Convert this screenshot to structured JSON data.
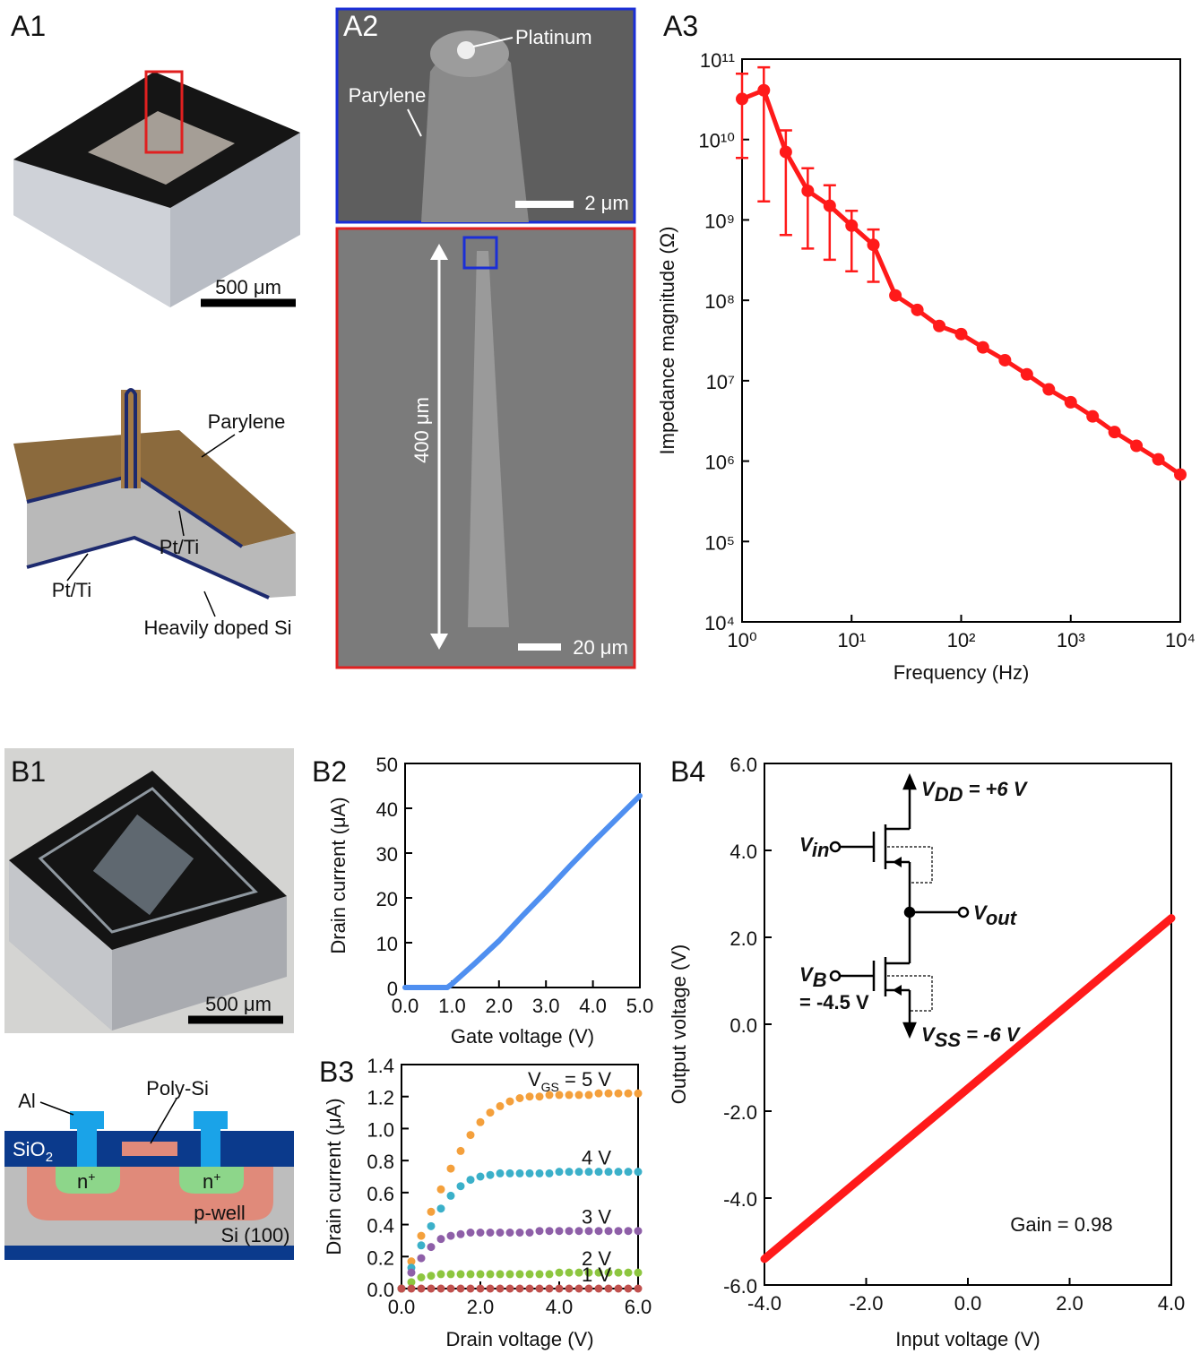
{
  "panels": {
    "a1": "A1",
    "a2": "A2",
    "a3": "A3",
    "b1": "B1",
    "b2": "B2",
    "b3": "B3",
    "b4": "B4"
  },
  "a1": {
    "scale_bar": "500 μm",
    "parylene": "Parylene",
    "pt_ti_1": "Pt/Ti",
    "pt_ti_2": "Pt/Ti",
    "si": "Heavily doped Si"
  },
  "a2": {
    "platinum": "Platinum",
    "parylene": "Parylene",
    "scale_top": "2 μm",
    "length": "400 μm",
    "scale_bottom": "20 μm"
  },
  "b1": {
    "scale_bar": "500 μm",
    "al": "Al",
    "poly": "Poly-Si",
    "sio2": {
      "main": "SiO",
      "sub": "2"
    },
    "n1": {
      "main": "n",
      "sup": "+"
    },
    "n2": {
      "main": "n",
      "sup": "+"
    },
    "pwell": "p-well",
    "si": "Si (100)"
  },
  "b4_circuit": {
    "vdd": {
      "main": "V",
      "sub": "DD",
      "rest": " = +6 V"
    },
    "vin": {
      "main": "V",
      "sub": "in"
    },
    "vout": {
      "main": "V",
      "sub": "out"
    },
    "vb": {
      "main": "V",
      "sub": "B"
    },
    "vb_value": "= -4.5 V",
    "vss": {
      "main": "V",
      "sub": "SS",
      "rest": " = -6 V"
    }
  },
  "chart_data": [
    {
      "type": "line",
      "markers": true,
      "log_x": true,
      "log_y": true,
      "x_label": "Frequency (Hz)",
      "y_label": "Impedance magnitude (Ω)",
      "x": [
        1,
        1.58,
        2.51,
        3.98,
        6.31,
        10,
        15.8,
        25.1,
        39.8,
        63.1,
        100,
        158,
        251,
        398,
        631,
        1000,
        1585,
        2512,
        3981,
        6310,
        10000
      ],
      "series": [
        {
          "color": "#ff1a1a",
          "values": [
            32000000000.0,
            41000000000.0,
            7000000000.0,
            2300000000.0,
            1500000000.0,
            850000000.0,
            490000000.0,
            115000000.0,
            76000000.0,
            48000000.0,
            38000000.0,
            26000000.0,
            18000000.0,
            12000000.0,
            7800000.0,
            5400000.0,
            3600000.0,
            2300000.0,
            1550000.0,
            1050000.0,
            680000.0
          ],
          "upper": [
            66000000000.0,
            79000000000.0,
            13000000000.0,
            4400000000.0,
            2700000000.0,
            1300000000.0,
            760000000.0,
            null,
            null,
            null,
            null,
            null,
            null,
            null,
            null,
            null,
            null,
            null,
            null,
            null,
            null
          ],
          "lower": [
            5900000000.0,
            1700000000.0,
            650000000.0,
            440000000.0,
            320000000.0,
            230000000.0,
            170000000.0,
            null,
            null,
            null,
            null,
            null,
            null,
            null,
            null,
            null,
            null,
            null,
            null,
            null,
            null
          ]
        }
      ],
      "xlim": [
        1,
        10000
      ],
      "ylim": [
        10000,
        100000000000.0
      ],
      "xticks": [
        {
          "value": 1,
          "label": "10⁰"
        },
        {
          "value": 10,
          "label": "10¹"
        },
        {
          "value": 100,
          "label": "10²"
        },
        {
          "value": 1000,
          "label": "10³"
        },
        {
          "value": 10000,
          "label": "10⁴"
        }
      ],
      "yticks": [
        {
          "value": 10000,
          "label": "10⁴"
        },
        {
          "value": 100000,
          "label": "10⁵"
        },
        {
          "value": 1000000,
          "label": "10⁶"
        },
        {
          "value": 10000000,
          "label": "10⁷"
        },
        {
          "value": 100000000,
          "label": "10⁸"
        },
        {
          "value": 1000000000,
          "label": "10⁹"
        },
        {
          "value": 10000000000,
          "label": "10¹⁰"
        },
        {
          "value": 100000000000,
          "label": "10¹¹"
        }
      ]
    },
    {
      "type": "line",
      "markers": false,
      "x_label": "Gate voltage (V)",
      "y_label": "Drain current (μA)",
      "x": [
        0,
        0.5,
        0.9,
        1.0,
        1.5,
        2.0,
        2.5,
        3.0,
        3.5,
        4.0,
        4.5,
        5.0
      ],
      "series": [
        {
          "color": "#4f8ff0",
          "values": [
            0,
            0,
            0,
            0.8,
            5.5,
            10.4,
            16,
            21.4,
            27,
            32.4,
            37.6,
            42.8
          ]
        }
      ],
      "xlim": [
        0,
        5
      ],
      "ylim": [
        0,
        50
      ],
      "xticks": [
        {
          "value": 0,
          "label": "0.0"
        },
        {
          "value": 1,
          "label": "1.0"
        },
        {
          "value": 2,
          "label": "2.0"
        },
        {
          "value": 3,
          "label": "3.0"
        },
        {
          "value": 4,
          "label": "4.0"
        },
        {
          "value": 5,
          "label": "5.0"
        }
      ],
      "yticks": [
        0,
        10,
        20,
        30,
        40,
        50
      ]
    },
    {
      "type": "scatter",
      "x_label": "Drain voltage (V)",
      "y_label": "Drain current (μA)",
      "label_prefix": {
        "main": "V",
        "sub": "GS",
        "rest": " = "
      },
      "x": [
        0,
        0.25,
        0.5,
        0.75,
        1,
        1.25,
        1.5,
        1.75,
        2,
        2.25,
        2.5,
        2.75,
        3,
        3.25,
        3.5,
        3.75,
        4,
        4.25,
        4.5,
        4.75,
        5,
        5.25,
        5.5,
        5.75,
        6
      ],
      "series": [
        {
          "name": "5 V",
          "color": "#f4a03c",
          "values": [
            0,
            0.17,
            0.33,
            0.48,
            0.62,
            0.75,
            0.86,
            0.96,
            1.04,
            1.1,
            1.14,
            1.17,
            1.19,
            1.2,
            1.2,
            1.21,
            1.21,
            1.21,
            1.21,
            1.21,
            1.22,
            1.22,
            1.22,
            1.22,
            1.22
          ]
        },
        {
          "name": "4 V",
          "color": "#3bb0c9",
          "values": [
            0,
            0.13,
            0.27,
            0.39,
            0.5,
            0.58,
            0.64,
            0.68,
            0.7,
            0.71,
            0.72,
            0.72,
            0.72,
            0.72,
            0.72,
            0.72,
            0.73,
            0.73,
            0.73,
            0.73,
            0.73,
            0.73,
            0.73,
            0.73,
            0.73
          ]
        },
        {
          "name": "3 V",
          "color": "#8e5fa8",
          "values": [
            0,
            0.1,
            0.19,
            0.26,
            0.31,
            0.33,
            0.34,
            0.35,
            0.35,
            0.35,
            0.35,
            0.35,
            0.35,
            0.35,
            0.36,
            0.36,
            0.36,
            0.36,
            0.36,
            0.36,
            0.36,
            0.36,
            0.36,
            0.36,
            0.36
          ]
        },
        {
          "name": "2 V",
          "color": "#8dc63f",
          "values": [
            0,
            0.04,
            0.07,
            0.08,
            0.09,
            0.09,
            0.09,
            0.09,
            0.09,
            0.09,
            0.09,
            0.09,
            0.09,
            0.09,
            0.09,
            0.09,
            0.1,
            0.1,
            0.1,
            0.1,
            0.1,
            0.1,
            0.1,
            0.1,
            0.1
          ]
        },
        {
          "name": "1 V",
          "color": "#c0504d",
          "values": [
            0,
            0,
            0,
            0,
            0,
            0,
            0,
            0,
            0,
            0,
            0,
            0,
            0,
            0,
            0,
            0,
            0,
            0,
            0,
            0,
            0,
            0,
            0,
            0,
            0
          ]
        }
      ],
      "xlim": [
        0,
        6
      ],
      "ylim": [
        0,
        1.4
      ],
      "xticks": [
        {
          "value": 0,
          "label": "0.0"
        },
        {
          "value": 2,
          "label": "2.0"
        },
        {
          "value": 4,
          "label": "4.0"
        },
        {
          "value": 6,
          "label": "6.0"
        }
      ],
      "yticks": [
        {
          "value": 0,
          "label": "0.0"
        },
        {
          "value": 0.2,
          "label": "0.2"
        },
        {
          "value": 0.4,
          "label": "0.4"
        },
        {
          "value": 0.6,
          "label": "0.6"
        },
        {
          "value": 0.8,
          "label": "0.8"
        },
        {
          "value": 1,
          "label": "1.0"
        },
        {
          "value": 1.2,
          "label": "1.2"
        },
        {
          "value": 1.4,
          "label": "1.4"
        }
      ]
    },
    {
      "type": "line",
      "markers": false,
      "x_label": "Input voltage (V)",
      "y_label": "Output voltage (V)",
      "annotation": "Gain = 0.98",
      "x": [
        -4,
        -2,
        0,
        2,
        4
      ],
      "series": [
        {
          "color": "#ff1a1a",
          "values": [
            -5.4,
            -3.44,
            -1.48,
            0.48,
            2.44
          ]
        }
      ],
      "xlim": [
        -4,
        4
      ],
      "ylim": [
        -6,
        6
      ],
      "xticks": [
        {
          "value": -4,
          "label": "-4.0"
        },
        {
          "value": -2,
          "label": "-2.0"
        },
        {
          "value": 0,
          "label": "0.0"
        },
        {
          "value": 2,
          "label": "2.0"
        },
        {
          "value": 4,
          "label": "4.0"
        }
      ],
      "yticks": [
        {
          "value": -6,
          "label": "-6.0"
        },
        {
          "value": -4,
          "label": "-4.0"
        },
        {
          "value": -2,
          "label": "-2.0"
        },
        {
          "value": 0,
          "label": "0.0"
        },
        {
          "value": 2,
          "label": "2.0"
        },
        {
          "value": 4,
          "label": "4.0"
        },
        {
          "value": 6,
          "label": "6.0"
        }
      ]
    }
  ]
}
